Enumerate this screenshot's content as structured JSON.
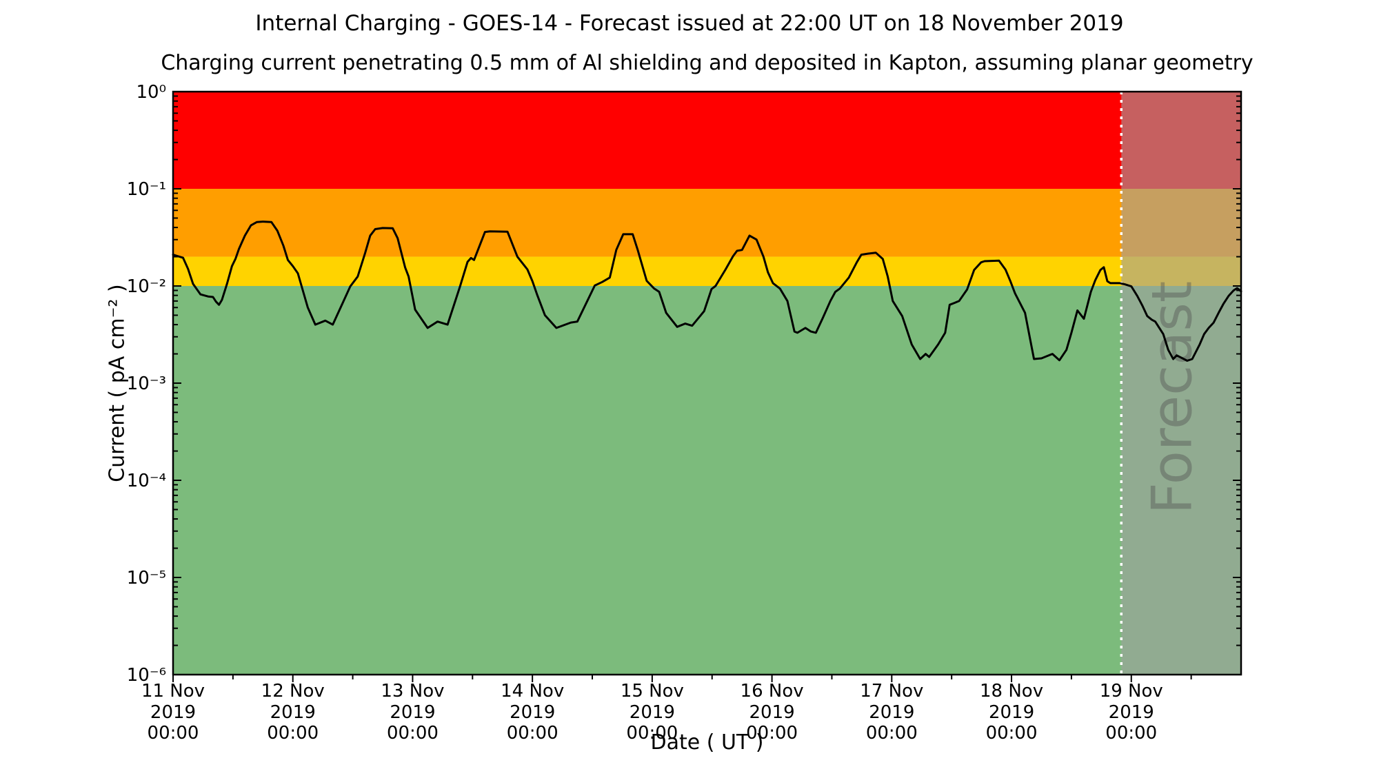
{
  "chart_data": {
    "type": "line",
    "title": "Internal Charging - GOES-14 - Forecast issued at 22:00 UT on 18 November 2019",
    "subtitle": "Charging current penetrating 0.5 mm of Al shielding and deposited in Kapton, assuming planar geometry",
    "xlabel": "Date ( UT )",
    "ylabel": "Current ( pA cm⁻² )",
    "ylim": [
      1e-06,
      1
    ],
    "y_scale": "log",
    "grid": false,
    "xlim_hours": [
      0,
      214
    ],
    "x_ticks": [
      {
        "date": "11 Nov",
        "year": "2019",
        "time": "00:00",
        "hour": 0
      },
      {
        "date": "12 Nov",
        "year": "2019",
        "time": "00:00",
        "hour": 24
      },
      {
        "date": "13 Nov",
        "year": "2019",
        "time": "00:00",
        "hour": 48
      },
      {
        "date": "14 Nov",
        "year": "2019",
        "time": "00:00",
        "hour": 72
      },
      {
        "date": "15 Nov",
        "year": "2019",
        "time": "00:00",
        "hour": 96
      },
      {
        "date": "16 Nov",
        "year": "2019",
        "time": "00:00",
        "hour": 120
      },
      {
        "date": "17 Nov",
        "year": "2019",
        "time": "00:00",
        "hour": 144
      },
      {
        "date": "18 Nov",
        "year": "2019",
        "time": "00:00",
        "hour": 168
      },
      {
        "date": "19 Nov",
        "year": "2019",
        "time": "00:00",
        "hour": 192
      }
    ],
    "y_ticks": [
      "10⁰",
      "10⁻¹",
      "10⁻²",
      "10⁻³",
      "10⁻⁴",
      "10⁻⁵",
      "10⁻⁶"
    ],
    "bands": [
      {
        "name": "red",
        "from": 0.1,
        "to": 1,
        "color": "#FF0000"
      },
      {
        "name": "orange",
        "from": 0.02,
        "to": 0.1,
        "color": "#FF9E00"
      },
      {
        "name": "yellow",
        "from": 0.01,
        "to": 0.02,
        "color": "#FFD300"
      },
      {
        "name": "green",
        "from": 1e-06,
        "to": 0.01,
        "color": "#7CBB7C"
      }
    ],
    "forecast": {
      "label": "Forecast",
      "start_hour": 190,
      "start_time": "18 Nov 2019 22:00 UT",
      "divider_color": "#FFFFFF",
      "overlay_color": "rgba(160,160,160,0.6)",
      "label_color": "rgba(80,80,80,0.42)"
    },
    "series": [
      {
        "name": "charging-current",
        "color": "#000000",
        "points": [
          [
            0,
            0.021
          ],
          [
            2,
            0.0195
          ],
          [
            3,
            0.015
          ],
          [
            4,
            0.0105
          ],
          [
            5.5,
            0.0082
          ],
          [
            7,
            0.0078
          ],
          [
            8,
            0.0077
          ],
          [
            8.6,
            0.0069
          ],
          [
            9.2,
            0.0064
          ],
          [
            9.8,
            0.0072
          ],
          [
            10.8,
            0.0105
          ],
          [
            11.8,
            0.016
          ],
          [
            12.5,
            0.019
          ],
          [
            13.2,
            0.024
          ],
          [
            14.4,
            0.033
          ],
          [
            15.6,
            0.042
          ],
          [
            16.8,
            0.0455
          ],
          [
            18,
            0.046
          ],
          [
            19.7,
            0.0455
          ],
          [
            20.9,
            0.037
          ],
          [
            22.1,
            0.026
          ],
          [
            23,
            0.0185
          ],
          [
            24,
            0.016
          ],
          [
            25,
            0.0135
          ],
          [
            26,
            0.009
          ],
          [
            27,
            0.006
          ],
          [
            28.5,
            0.004
          ],
          [
            30.5,
            0.0044
          ],
          [
            32,
            0.004
          ],
          [
            34,
            0.0067
          ],
          [
            35.5,
            0.0099
          ],
          [
            37,
            0.0125
          ],
          [
            38.5,
            0.022
          ],
          [
            39.5,
            0.033
          ],
          [
            40.5,
            0.0385
          ],
          [
            42,
            0.0395
          ],
          [
            44,
            0.0393
          ],
          [
            45,
            0.031
          ],
          [
            46.5,
            0.0155
          ],
          [
            47.2,
            0.0125
          ],
          [
            48.5,
            0.0057
          ],
          [
            51,
            0.0037
          ],
          [
            53,
            0.0043
          ],
          [
            55,
            0.004
          ],
          [
            57.5,
            0.0099
          ],
          [
            59,
            0.0177
          ],
          [
            59.7,
            0.0194
          ],
          [
            60.3,
            0.0185
          ],
          [
            62.5,
            0.036
          ],
          [
            63.5,
            0.0365
          ],
          [
            67,
            0.0362
          ],
          [
            69,
            0.02
          ],
          [
            71,
            0.0148
          ],
          [
            72,
            0.0112
          ],
          [
            73,
            0.008
          ],
          [
            74.5,
            0.005
          ],
          [
            76.8,
            0.0037
          ],
          [
            79.7,
            0.0042
          ],
          [
            81,
            0.0043
          ],
          [
            84.5,
            0.0101
          ],
          [
            86,
            0.011
          ],
          [
            87.5,
            0.0122
          ],
          [
            88.8,
            0.0235
          ],
          [
            90.2,
            0.0341
          ],
          [
            92.1,
            0.0341
          ],
          [
            93.1,
            0.0235
          ],
          [
            94.9,
            0.0113
          ],
          [
            96.4,
            0.0094
          ],
          [
            97.4,
            0.0087
          ],
          [
            98.8,
            0.0053
          ],
          [
            101,
            0.0038
          ],
          [
            102.6,
            0.0041
          ],
          [
            104,
            0.0039
          ],
          [
            106.4,
            0.0055
          ],
          [
            107.9,
            0.0093
          ],
          [
            108.7,
            0.01
          ],
          [
            110.7,
            0.0148
          ],
          [
            112.2,
            0.0202
          ],
          [
            113,
            0.023
          ],
          [
            114,
            0.0235
          ],
          [
            115.5,
            0.033
          ],
          [
            116.9,
            0.03
          ],
          [
            118.3,
            0.02
          ],
          [
            119.2,
            0.0138
          ],
          [
            120.2,
            0.0107
          ],
          [
            121.6,
            0.0094
          ],
          [
            123.1,
            0.007
          ],
          [
            124.5,
            0.0034
          ],
          [
            125.1,
            0.0033
          ],
          [
            126.7,
            0.0037
          ],
          [
            127.8,
            0.0034
          ],
          [
            128.8,
            0.0033
          ],
          [
            130.2,
            0.0047
          ],
          [
            131.7,
            0.007
          ],
          [
            132.7,
            0.0087
          ],
          [
            133.6,
            0.0094
          ],
          [
            135.4,
            0.0122
          ],
          [
            137,
            0.0175
          ],
          [
            137.9,
            0.021
          ],
          [
            139.2,
            0.0215
          ],
          [
            140.8,
            0.022
          ],
          [
            142.2,
            0.019
          ],
          [
            143.2,
            0.0125
          ],
          [
            144.2,
            0.007
          ],
          [
            146.1,
            0.0049
          ],
          [
            148,
            0.0025
          ],
          [
            149.7,
            0.00177
          ],
          [
            150.8,
            0.002
          ],
          [
            151.5,
            0.00186
          ],
          [
            153.3,
            0.0025
          ],
          [
            154.7,
            0.0033
          ],
          [
            155.6,
            0.0064
          ],
          [
            156.6,
            0.0067
          ],
          [
            157.5,
            0.007
          ],
          [
            159.1,
            0.0092
          ],
          [
            160.5,
            0.0146
          ],
          [
            161.9,
            0.0175
          ],
          [
            162.6,
            0.018
          ],
          [
            165.5,
            0.0182
          ],
          [
            166.8,
            0.0147
          ],
          [
            167.8,
            0.0111
          ],
          [
            168.7,
            0.0084
          ],
          [
            170.7,
            0.0053
          ],
          [
            172.5,
            0.00177
          ],
          [
            174,
            0.0018
          ],
          [
            176.2,
            0.002
          ],
          [
            177.6,
            0.00172
          ],
          [
            179,
            0.0022
          ],
          [
            180,
            0.0033
          ],
          [
            181.2,
            0.0056
          ],
          [
            182.5,
            0.0046
          ],
          [
            183.9,
            0.0087
          ],
          [
            184.8,
            0.0115
          ],
          [
            185.8,
            0.0146
          ],
          [
            186.5,
            0.0156
          ],
          [
            187.2,
            0.0112
          ],
          [
            187.8,
            0.0107
          ],
          [
            189.7,
            0.0107
          ],
          [
            190.7,
            0.0104
          ],
          [
            192,
            0.0099
          ],
          [
            193.2,
            0.0079
          ],
          [
            194.2,
            0.0063
          ],
          [
            195.2,
            0.0049
          ],
          [
            196.1,
            0.0045
          ],
          [
            196.8,
            0.0043
          ],
          [
            198.4,
            0.0032
          ],
          [
            199.4,
            0.0022
          ],
          [
            200.4,
            0.00177
          ],
          [
            201.1,
            0.00193
          ],
          [
            203.2,
            0.0017
          ],
          [
            204.2,
            0.00177
          ],
          [
            205.7,
            0.0025
          ],
          [
            206.6,
            0.0032
          ],
          [
            207.5,
            0.0037
          ],
          [
            208.5,
            0.0042
          ],
          [
            209.5,
            0.0053
          ],
          [
            210.5,
            0.0066
          ],
          [
            211.5,
            0.0079
          ],
          [
            212.5,
            0.009
          ],
          [
            213.2,
            0.0095
          ],
          [
            214,
            0.0088
          ]
        ]
      }
    ]
  }
}
